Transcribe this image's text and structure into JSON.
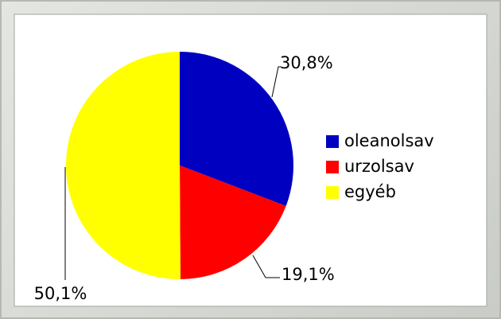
{
  "chart_data": {
    "type": "pie",
    "categories": [
      "oleanolsav",
      "urzolsav",
      "egyéb"
    ],
    "values": [
      30.8,
      19.1,
      50.1
    ],
    "value_labels": [
      "30,8%",
      "19,1%",
      "50,1%"
    ],
    "colors": [
      "#0000c0",
      "#ff0000",
      "#ffff00"
    ],
    "legend": "right"
  }
}
